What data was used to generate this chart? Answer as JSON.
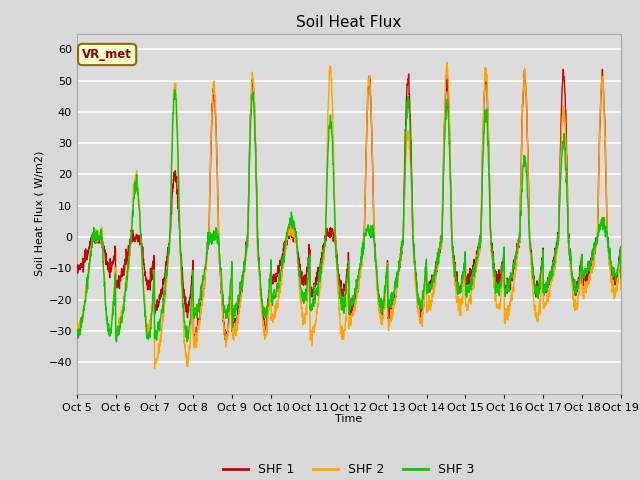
{
  "title": "Soil Heat Flux",
  "ylabel": "Soil Heat Flux ( W/m2)",
  "xlabel": "Time",
  "ylim": [
    -50,
    65
  ],
  "yticks": [
    -40,
    -30,
    -20,
    -10,
    0,
    10,
    20,
    30,
    40,
    50,
    60
  ],
  "figure_bg": "#d8d8d8",
  "plot_bg": "#dcdcdc",
  "grid_color": "#ffffff",
  "colors": {
    "SHF1": "#cc0000",
    "SHF2": "#ffa500",
    "SHF3": "#00cc00"
  },
  "legend_labels": [
    "SHF 1",
    "SHF 2",
    "SHF 3"
  ],
  "annotation_text": "VR_met",
  "x_tick_labels": [
    "Oct 5",
    "Oct 6",
    "Oct 7",
    "Oct 8",
    "Oct 9",
    "Oct 10",
    "Oct 11",
    "Oct 12",
    "Oct 13",
    "Oct 14",
    "Oct 15",
    "Oct 16",
    "Oct 17",
    "Oct 18",
    "Oct 19"
  ],
  "linewidth": 1.0,
  "title_fontsize": 11,
  "axis_fontsize": 8,
  "tick_fontsize": 8
}
